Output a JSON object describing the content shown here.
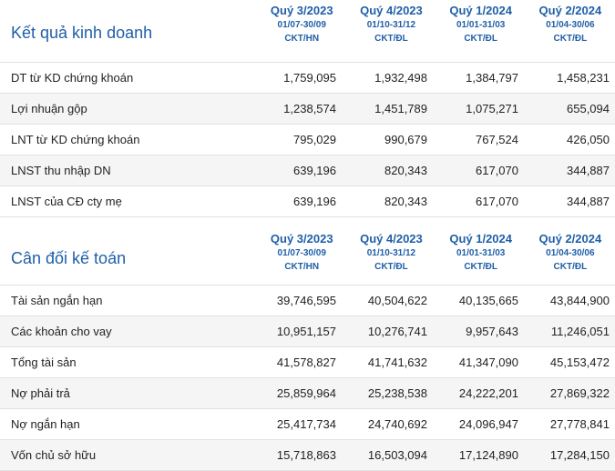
{
  "income": {
    "title": "Kết quả kinh doanh",
    "columns": [
      {
        "quarter": "Quý 3/2023",
        "range": "01/07-30/09",
        "unit": "CKT/HN"
      },
      {
        "quarter": "Quý 4/2023",
        "range": "01/10-31/12",
        "unit": "CKT/ĐL"
      },
      {
        "quarter": "Quý 1/2024",
        "range": "01/01-31/03",
        "unit": "CKT/ĐL"
      },
      {
        "quarter": "Quý 2/2024",
        "range": "01/04-30/06",
        "unit": "CKT/ĐL"
      }
    ],
    "rows": [
      {
        "label": "DT từ KD chứng khoán",
        "values": [
          "1,759,095",
          "1,932,498",
          "1,384,797",
          "1,458,231"
        ]
      },
      {
        "label": "Lợi nhuận gộp",
        "values": [
          "1,238,574",
          "1,451,789",
          "1,075,271",
          "655,094"
        ]
      },
      {
        "label": "LNT từ KD chứng khoán",
        "values": [
          "795,029",
          "990,679",
          "767,524",
          "426,050"
        ]
      },
      {
        "label": "LNST thu nhập DN",
        "values": [
          "639,196",
          "820,343",
          "617,070",
          "344,887"
        ]
      },
      {
        "label": "LNST của CĐ cty mẹ",
        "values": [
          "639,196",
          "820,343",
          "617,070",
          "344,887"
        ]
      }
    ]
  },
  "balance": {
    "title": "Cân đối kế toán",
    "columns": [
      {
        "quarter": "Quý 3/2023",
        "range": "01/07-30/09",
        "unit": "CKT/HN"
      },
      {
        "quarter": "Quý 4/2023",
        "range": "01/10-31/12",
        "unit": "CKT/ĐL"
      },
      {
        "quarter": "Quý 1/2024",
        "range": "01/01-31/03",
        "unit": "CKT/ĐL"
      },
      {
        "quarter": "Quý 2/2024",
        "range": "01/04-30/06",
        "unit": "CKT/ĐL"
      }
    ],
    "rows": [
      {
        "label": "Tài sản ngắn hạn",
        "values": [
          "39,746,595",
          "40,504,622",
          "40,135,665",
          "43,844,900"
        ]
      },
      {
        "label": "Các khoản cho vay",
        "values": [
          "10,951,157",
          "10,276,741",
          "9,957,643",
          "11,246,051"
        ]
      },
      {
        "label": "Tổng tài sản",
        "values": [
          "41,578,827",
          "41,741,632",
          "41,347,090",
          "45,153,472"
        ]
      },
      {
        "label": "Nợ phải trả",
        "values": [
          "25,859,964",
          "25,238,538",
          "24,222,201",
          "27,869,322"
        ]
      },
      {
        "label": "Nợ ngắn hạn",
        "values": [
          "25,417,734",
          "24,740,692",
          "24,096,947",
          "27,778,841"
        ]
      },
      {
        "label": "Vốn chủ sở hữu",
        "values": [
          "15,718,863",
          "16,503,094",
          "17,124,890",
          "17,284,150"
        ]
      }
    ]
  }
}
